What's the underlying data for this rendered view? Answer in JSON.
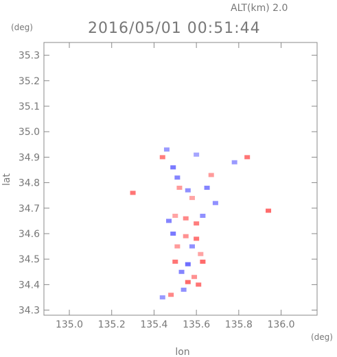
{
  "header": {
    "alt_label": "ALT(km) 2.0",
    "timestamp": "2016/05/01 00:51:44"
  },
  "chart_data": {
    "type": "heatmap",
    "title": "2016/05/01 00:51:44",
    "subtitle": "ALT(km) 2.0",
    "xlabel": "lon",
    "ylabel": "lat",
    "x_unit": "(deg)",
    "y_unit": "(deg)",
    "xlim": [
      134.88,
      136.17
    ],
    "ylim": [
      34.28,
      35.35
    ],
    "x_ticks": [
      "135.0",
      "135.2",
      "135.4",
      "135.6",
      "135.8",
      "136.0"
    ],
    "y_ticks": [
      "34.3",
      "34.4",
      "34.5",
      "34.6",
      "34.7",
      "34.8",
      "34.9",
      "35.0",
      "35.1",
      "35.2",
      "35.3"
    ],
    "grid": false,
    "colors": {
      "positive": "#ff6b6b",
      "negative": "#5a5aff",
      "frame": "#888888"
    },
    "cells": [
      {
        "lon": 135.3,
        "lat": 34.76,
        "v": 0.9
      },
      {
        "lon": 135.44,
        "lat": 34.9,
        "v": 0.8
      },
      {
        "lon": 135.46,
        "lat": 34.93,
        "v": -0.4
      },
      {
        "lon": 135.49,
        "lat": 34.86,
        "v": -0.7
      },
      {
        "lon": 135.51,
        "lat": 34.82,
        "v": -0.6
      },
      {
        "lon": 135.52,
        "lat": 34.78,
        "v": 0.5
      },
      {
        "lon": 135.56,
        "lat": 34.77,
        "v": -0.5
      },
      {
        "lon": 135.58,
        "lat": 34.74,
        "v": 0.4
      },
      {
        "lon": 135.6,
        "lat": 34.91,
        "v": -0.3
      },
      {
        "lon": 135.65,
        "lat": 34.78,
        "v": -0.6
      },
      {
        "lon": 135.67,
        "lat": 34.83,
        "v": 0.5
      },
      {
        "lon": 135.69,
        "lat": 34.72,
        "v": -0.5
      },
      {
        "lon": 135.78,
        "lat": 34.88,
        "v": -0.4
      },
      {
        "lon": 135.84,
        "lat": 34.9,
        "v": 0.9
      },
      {
        "lon": 135.94,
        "lat": 34.69,
        "v": 1.0
      },
      {
        "lon": 135.47,
        "lat": 34.65,
        "v": -0.6
      },
      {
        "lon": 135.5,
        "lat": 34.67,
        "v": 0.4
      },
      {
        "lon": 135.55,
        "lat": 34.66,
        "v": 0.7
      },
      {
        "lon": 135.6,
        "lat": 34.64,
        "v": 0.8
      },
      {
        "lon": 135.63,
        "lat": 34.67,
        "v": -0.5
      },
      {
        "lon": 135.49,
        "lat": 34.6,
        "v": -0.7
      },
      {
        "lon": 135.55,
        "lat": 34.59,
        "v": 0.6
      },
      {
        "lon": 135.6,
        "lat": 34.58,
        "v": 0.9
      },
      {
        "lon": 135.51,
        "lat": 34.55,
        "v": 0.5
      },
      {
        "lon": 135.58,
        "lat": 34.55,
        "v": -0.5
      },
      {
        "lon": 135.62,
        "lat": 34.52,
        "v": 0.4
      },
      {
        "lon": 135.5,
        "lat": 34.49,
        "v": 0.9
      },
      {
        "lon": 135.56,
        "lat": 34.48,
        "v": -0.8
      },
      {
        "lon": 135.63,
        "lat": 34.49,
        "v": 1.0
      },
      {
        "lon": 135.53,
        "lat": 34.45,
        "v": -0.6
      },
      {
        "lon": 135.59,
        "lat": 34.43,
        "v": 0.6
      },
      {
        "lon": 135.56,
        "lat": 34.41,
        "v": 1.0
      },
      {
        "lon": 135.61,
        "lat": 34.4,
        "v": 0.9
      },
      {
        "lon": 135.54,
        "lat": 34.38,
        "v": -0.5
      },
      {
        "lon": 135.48,
        "lat": 34.36,
        "v": 0.7
      },
      {
        "lon": 135.44,
        "lat": 34.35,
        "v": -0.4
      }
    ]
  }
}
